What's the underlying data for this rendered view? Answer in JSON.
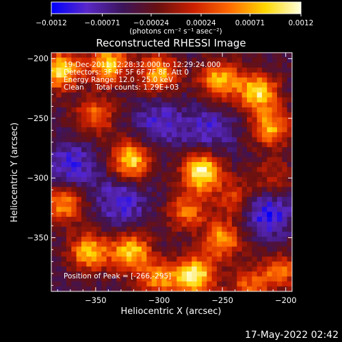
{
  "chart_data": {
    "type": "heatmap",
    "title": "Reconstructed RHESSI Image",
    "xlabel": "Heliocentric X (arcsec)",
    "ylabel": "Heliocentric Y (arcsec)",
    "xlim": [
      -385,
      -195
    ],
    "ylim": [
      -395,
      -195
    ],
    "xticks": [
      -350,
      -300,
      -250,
      -200
    ],
    "yticks": [
      -200,
      -250,
      -300,
      -350
    ],
    "xtick_labels": [
      "−350",
      "−300",
      "−250",
      "−200"
    ],
    "ytick_labels": [
      "−200",
      "−250",
      "−300",
      "−350"
    ],
    "colorbar": {
      "range": [
        -0.0012,
        0.0012
      ],
      "ticks": [
        -0.0012,
        -0.00071,
        -0.00024,
        0.00024,
        0.00071,
        0.0012
      ],
      "tick_labels": [
        "−0.0012",
        "−0.00071",
        "−0.00024",
        "0.00024",
        "0.00071",
        "0.0012"
      ],
      "unit_label": "(photons cm⁻² s⁻¹ asec⁻²)",
      "colormap": [
        "#0000ff",
        "#5a28c8",
        "#3c145a",
        "#6a1010",
        "#cc2000",
        "#ff6a00",
        "#ffd800",
        "#ffffe0"
      ]
    },
    "annotations": [
      "19-Dec-2011 12:28:32.000 to 12:29:24.000",
      "Detectors: 3F 4F 5F 6F 7F 8F, Att 0",
      "Energy Range: 12.0 - 25.0 keV",
      "Clean     Total counts: 1.29E+03"
    ],
    "peak_label": "Position of Peak = [-266,-295]",
    "peak": [
      -266,
      -295
    ],
    "sources": [
      {
        "x": -266,
        "y": -295,
        "amp": 1.0
      },
      {
        "x": -322,
        "y": -285,
        "amp": 0.85
      },
      {
        "x": -378,
        "y": -210,
        "amp": 0.9
      },
      {
        "x": -340,
        "y": -205,
        "amp": 0.8
      },
      {
        "x": -300,
        "y": -212,
        "amp": 0.7
      },
      {
        "x": -252,
        "y": -218,
        "amp": 0.75
      },
      {
        "x": -222,
        "y": -228,
        "amp": 0.85
      },
      {
        "x": -212,
        "y": -258,
        "amp": 0.7
      },
      {
        "x": -350,
        "y": -248,
        "amp": 0.55
      },
      {
        "x": -278,
        "y": -328,
        "amp": 0.55
      },
      {
        "x": -355,
        "y": -362,
        "amp": 0.75
      },
      {
        "x": -322,
        "y": -362,
        "amp": 0.8
      },
      {
        "x": -272,
        "y": -382,
        "amp": 0.95
      },
      {
        "x": -250,
        "y": -352,
        "amp": 0.7
      },
      {
        "x": -375,
        "y": -322,
        "amp": 0.65
      },
      {
        "x": -300,
        "y": -385,
        "amp": 0.6
      },
      {
        "x": -240,
        "y": -318,
        "amp": 0.45
      },
      {
        "x": -205,
        "y": -378,
        "amp": 0.55
      },
      {
        "x": -230,
        "y": -392,
        "amp": 0.5
      },
      {
        "x": -210,
        "y": -300,
        "amp": 0.35
      }
    ],
    "negative_regions": [
      {
        "x": -215,
        "y": -330,
        "amp": 0.45
      },
      {
        "x": -370,
        "y": -290,
        "amp": 0.35
      },
      {
        "x": -300,
        "y": -255,
        "amp": 0.3
      },
      {
        "x": -330,
        "y": -320,
        "amp": 0.35
      },
      {
        "x": -260,
        "y": -260,
        "amp": 0.3
      }
    ],
    "grid": false
  },
  "footer": {
    "timestamp": "17-May-2022 02:42"
  }
}
